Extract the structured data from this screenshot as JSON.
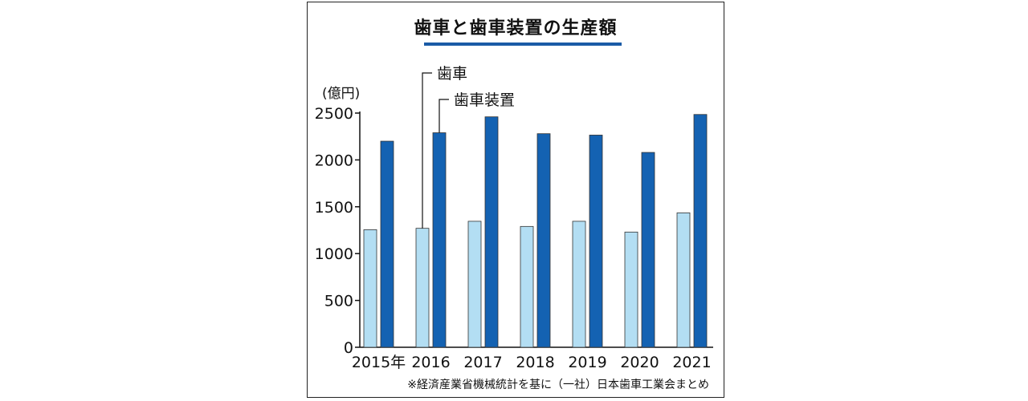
{
  "chart_data": {
    "type": "bar",
    "title": "歯車と歯車装置の生産額",
    "unit_label": "(億円)",
    "categories": [
      "2015年",
      "2016",
      "2017",
      "2018",
      "2019",
      "2020",
      "2021"
    ],
    "series": [
      {
        "name": "歯車",
        "color": "#b3def3",
        "values": [
          1255,
          1270,
          1345,
          1290,
          1345,
          1230,
          1435
        ]
      },
      {
        "name": "歯車装置",
        "color": "#1462b2",
        "values": [
          2200,
          2290,
          2460,
          2280,
          2265,
          2080,
          2485
        ]
      }
    ],
    "ylim": [
      0,
      2500
    ],
    "yticks": [
      0,
      500,
      1000,
      1500,
      2000,
      2500
    ],
    "source_note": "※経済産業省機械統計を基に（一社）日本歯車工業会まとめ"
  }
}
